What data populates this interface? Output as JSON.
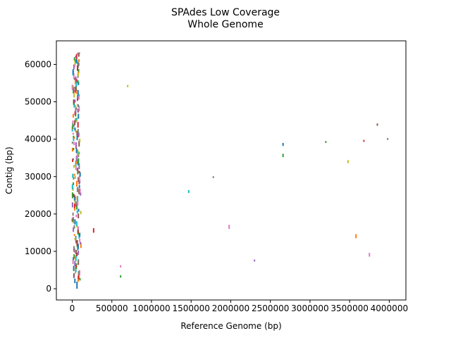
{
  "chart_data": {
    "type": "scatter",
    "title_line1": "SPAdes Low Coverage",
    "title_line2": "Whole Genome",
    "xlabel": "Reference Genome (bp)",
    "ylabel": "Contig (bp)",
    "xlim": [
      -200000,
      4210000
    ],
    "ylim": [
      -3000,
      66300
    ],
    "xticks": [
      0,
      500000,
      1000000,
      1500000,
      2000000,
      2500000,
      3000000,
      3500000,
      4000000
    ],
    "xtick_labels": [
      "0",
      "500000",
      "1000000",
      "1500000",
      "2000000",
      "2500000",
      "3000000",
      "3500000",
      "4000000"
    ],
    "yticks": [
      0,
      10000,
      20000,
      30000,
      40000,
      50000,
      60000
    ],
    "ytick_labels": [
      "0",
      "10000",
      "20000",
      "30000",
      "40000",
      "50000",
      "60000"
    ],
    "grid": false,
    "legend": "none",
    "palette": [
      "#1f77b4",
      "#ff7f0e",
      "#2ca02c",
      "#d62728",
      "#9467bd",
      "#8c564b",
      "#e377c2",
      "#7f7f7f",
      "#bcbd22",
      "#17becf"
    ],
    "outlier_segments": [
      {
        "x": 60000,
        "y0": 0,
        "y1": 1900,
        "color": "#1f77b4"
      },
      {
        "x": 270000,
        "y0": 15000,
        "y1": 16200,
        "color": "#d62728"
      },
      {
        "x": 610000,
        "y0": 3000,
        "y1": 3600,
        "color": "#2ca02c"
      },
      {
        "x": 610000,
        "y0": 5700,
        "y1": 6300,
        "color": "#e377c2"
      },
      {
        "x": 700000,
        "y0": 53900,
        "y1": 54500,
        "color": "#bcbd22"
      },
      {
        "x": 1470000,
        "y0": 25600,
        "y1": 26400,
        "color": "#17becf"
      },
      {
        "x": 1780000,
        "y0": 29600,
        "y1": 30100,
        "color": "#7f7f7f"
      },
      {
        "x": 1980000,
        "y0": 16000,
        "y1": 17100,
        "color": "#e377c2"
      },
      {
        "x": 2300000,
        "y0": 7300,
        "y1": 7800,
        "color": "#9467bd"
      },
      {
        "x": 2660000,
        "y0": 38200,
        "y1": 39000,
        "color": "#1f77b4"
      },
      {
        "x": 2660000,
        "y0": 35200,
        "y1": 36100,
        "color": "#2ca02c"
      },
      {
        "x": 3200000,
        "y0": 39000,
        "y1": 39500,
        "color": "#2ca02c"
      },
      {
        "x": 3480000,
        "y0": 33600,
        "y1": 34400,
        "color": "#bcbd22"
      },
      {
        "x": 3580000,
        "y0": 13500,
        "y1": 14600,
        "color": "#ff7f0e"
      },
      {
        "x": 3680000,
        "y0": 39300,
        "y1": 39800,
        "color": "#d62728"
      },
      {
        "x": 3750000,
        "y0": 8600,
        "y1": 9600,
        "color": "#e377c2"
      },
      {
        "x": 3850000,
        "y0": 43600,
        "y1": 44200,
        "color": "#8c564b"
      },
      {
        "x": 3980000,
        "y0": 39800,
        "y1": 40300,
        "color": "#7f7f7f"
      }
    ]
  }
}
